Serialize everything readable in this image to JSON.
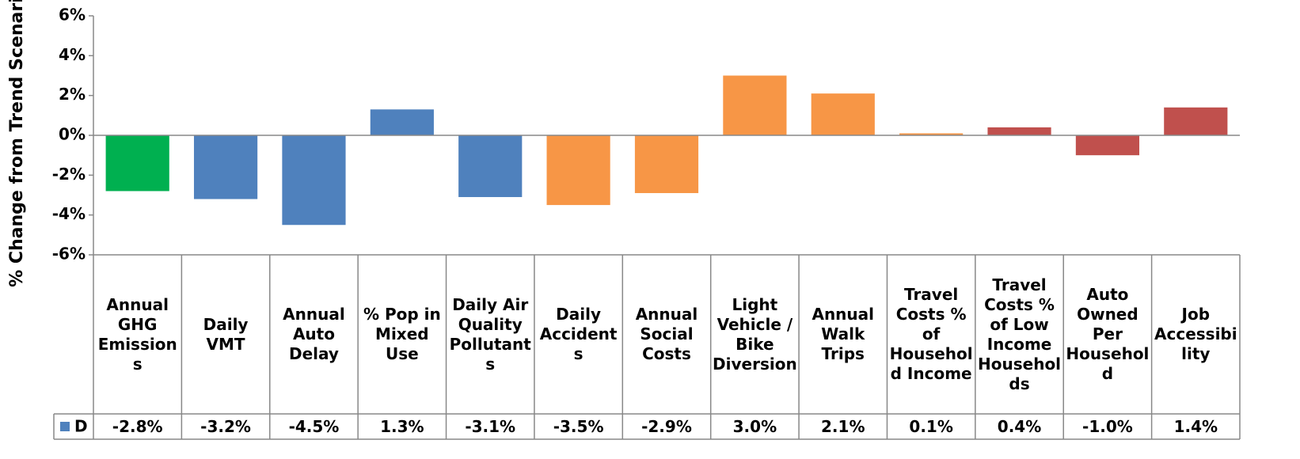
{
  "chart_data": {
    "type": "bar",
    "y_label": "% Change from Trend Scenario",
    "categories": [
      "Annual GHG Emissions",
      "Daily VMT",
      "Annual Auto Delay",
      "% Pop in Mixed Use",
      "Daily Air Quality Pollutants",
      "Daily Accidents",
      "Annual Social Costs",
      "Light Vehicle / Bike Diversion",
      "Annual Walk Trips",
      "Travel Costs % of Household Income",
      "Travel Costs % of Low Income Households",
      "Auto Owned Per Household",
      "Job Accessibility"
    ],
    "series": [
      {
        "name": "D",
        "color": "#4f81bd",
        "colors": [
          "#00b050",
          "#4f81bd",
          "#4f81bd",
          "#4f81bd",
          "#4f81bd",
          "#f79646",
          "#f79646",
          "#f79646",
          "#f79646",
          "#f79646",
          "#c0504d",
          "#c0504d",
          "#c0504d"
        ],
        "values": [
          -2.8,
          -3.2,
          -4.5,
          1.3,
          -3.1,
          -3.5,
          -2.9,
          3.0,
          2.1,
          0.1,
          0.4,
          -1.0,
          1.4
        ],
        "value_labels": [
          "-2.8%",
          "-3.2%",
          "-4.5%",
          "1.3%",
          "-3.1%",
          "-3.5%",
          "-2.9%",
          "3.0%",
          "2.1%",
          "0.1%",
          "0.4%",
          "-1.0%",
          "1.4%"
        ]
      }
    ],
    "ylim": [
      -6,
      6
    ],
    "yticks": [
      {
        "value": -6,
        "label": "-6%"
      },
      {
        "value": -4,
        "label": "-4%"
      },
      {
        "value": -2,
        "label": "-2%"
      },
      {
        "value": 0,
        "label": "0%"
      },
      {
        "value": 2,
        "label": "2%"
      },
      {
        "value": 4,
        "label": "4%"
      },
      {
        "value": 6,
        "label": "6%"
      }
    ]
  }
}
